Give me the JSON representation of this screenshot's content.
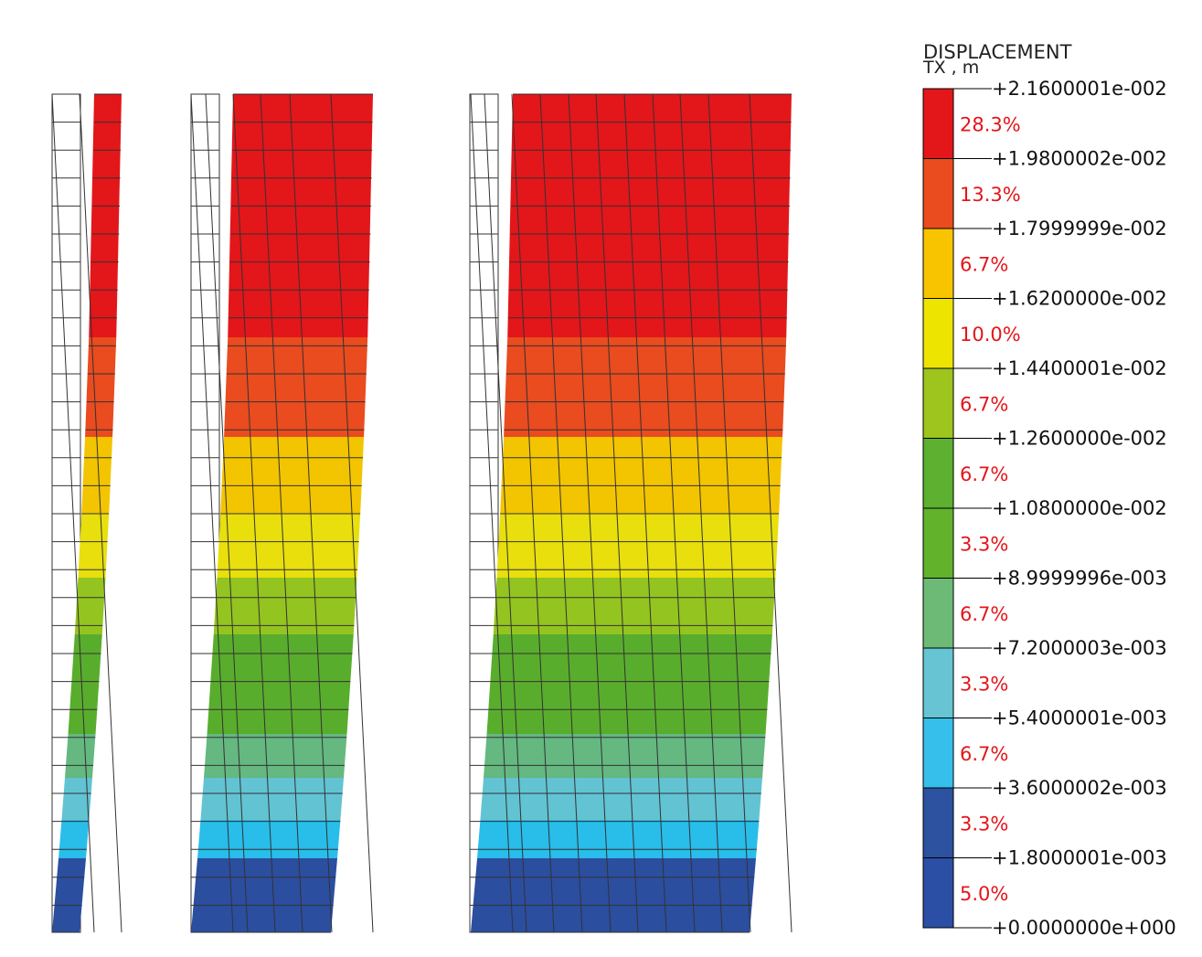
{
  "legend": {
    "title": "DISPLACEMENT",
    "subtitle": "TX , m",
    "bands": [
      {
        "color": "#e3161a",
        "percent": "28.3%"
      },
      {
        "color": "#ea4b1f",
        "percent": "13.3%"
      },
      {
        "color": "#f8c400",
        "percent": "6.7%"
      },
      {
        "color": "#ede400",
        "percent": "10.0%"
      },
      {
        "color": "#9ec41e",
        "percent": "6.7%"
      },
      {
        "color": "#5db030",
        "percent": "6.7%"
      },
      {
        "color": "#62b22c",
        "percent": "3.3%"
      },
      {
        "color": "#6cba75",
        "percent": "6.7%"
      },
      {
        "color": "#67c4d2",
        "percent": "3.3%"
      },
      {
        "color": "#35bfea",
        "percent": "6.7%"
      },
      {
        "color": "#2c52a0",
        "percent": "3.3%"
      },
      {
        "color": "#2b4fa4",
        "percent": "5.0%"
      }
    ],
    "values": [
      "+2.1600001e-002",
      "+1.9800002e-002",
      "+1.7999999e-002",
      "+1.6200000e-002",
      "+1.4400001e-002",
      "+1.2600000e-002",
      "+1.0800000e-002",
      "+8.9999996e-003",
      "+7.2000003e-003",
      "+5.4000001e-003",
      "+3.6000002e-003",
      "+1.8000001e-003",
      "+0.0000000e+000"
    ],
    "percent_color": "#e3161a"
  },
  "contour_colors": {
    "red": "#e3161a",
    "orange": "#ea4b1f",
    "amber": "#f3c400",
    "yellow": "#e8df0c",
    "lime": "#94c41f",
    "green": "#59ad2d",
    "seagreen": "#64b880",
    "cyan": "#62c3d3",
    "sky": "#29bdea",
    "navy": "#2b4e9f"
  }
}
